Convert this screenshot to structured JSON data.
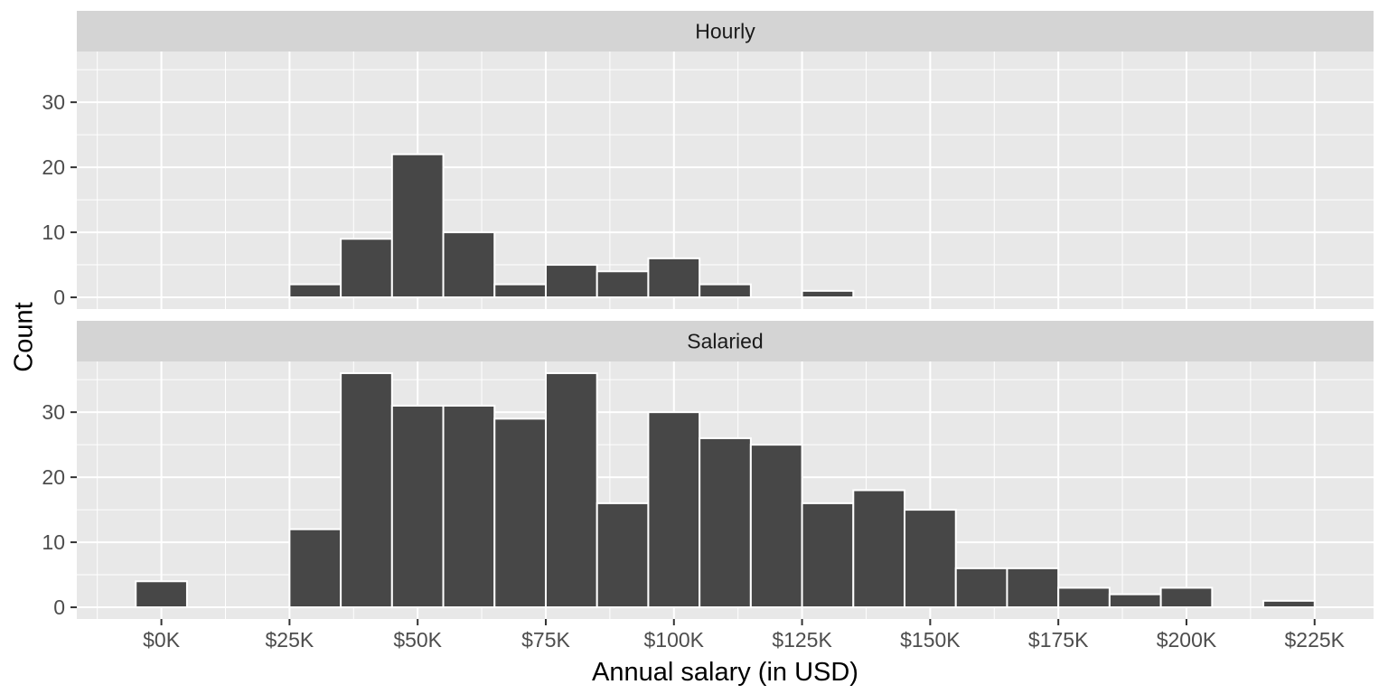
{
  "chart_data": {
    "type": "bar",
    "subtype": "faceted-histogram",
    "title": "",
    "xlabel": "Annual salary (in USD)",
    "ylabel": "Count",
    "x_unit": "thousand USD",
    "bin_width_k": 10,
    "xlim_k": [
      -16.5,
      236.5
    ],
    "ylim": [
      -1.8,
      37.8
    ],
    "grid": true,
    "legend": "none",
    "x_tick_values_k": [
      0,
      25,
      50,
      75,
      100,
      125,
      150,
      175,
      200,
      225
    ],
    "x_tick_labels": [
      "$0K",
      "$25K",
      "$50K",
      "$75K",
      "$100K",
      "$125K",
      "$150K",
      "$175K",
      "$200K",
      "$225K"
    ],
    "y_tick_values": [
      0,
      10,
      20,
      30
    ],
    "y_tick_labels": [
      "0",
      "10",
      "20",
      "30"
    ],
    "facets": [
      {
        "label": "Hourly",
        "bin_centers_k": [
          30,
          40,
          50,
          60,
          70,
          80,
          90,
          100,
          110,
          130
        ],
        "counts": [
          2,
          9,
          22,
          10,
          2,
          5,
          4,
          6,
          2,
          1
        ]
      },
      {
        "label": "Salaried",
        "bin_centers_k": [
          0,
          30,
          40,
          50,
          60,
          70,
          80,
          90,
          100,
          110,
          120,
          130,
          140,
          150,
          160,
          170,
          180,
          190,
          200,
          220
        ],
        "counts": [
          4,
          12,
          36,
          31,
          31,
          29,
          36,
          16,
          30,
          26,
          25,
          16,
          18,
          15,
          6,
          6,
          3,
          2,
          3,
          1
        ]
      }
    ],
    "colors": {
      "bar_fill": "#474747",
      "bar_stroke": "#ffffff",
      "panel_bg": "#E8E8E8",
      "strip_bg": "#D4D4D4",
      "grid_major": "#ffffff",
      "grid_minor": "#ffffff",
      "tick_mark": "#333333",
      "tick_label": "#4D4D4D",
      "strip_text": "#1A1A1A",
      "axis_title": "#000000",
      "background": "#ffffff"
    }
  }
}
